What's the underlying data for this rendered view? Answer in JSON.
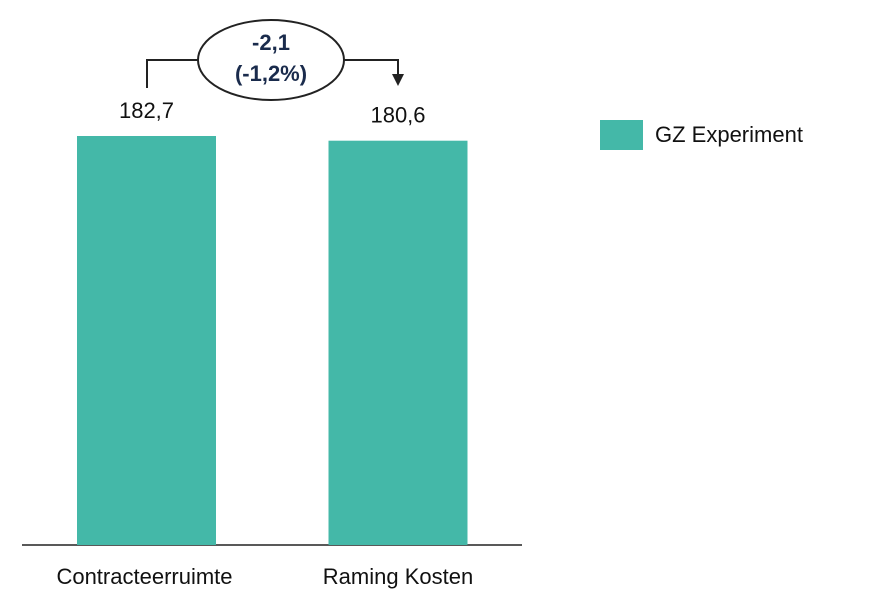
{
  "chart_data": {
    "type": "bar",
    "categories": [
      "Contracteerruimte",
      "Raming Kosten"
    ],
    "series": [
      {
        "name": "GZ Experiment",
        "color": "#44b8a8",
        "values": [
          182.7,
          180.6
        ],
        "value_labels": [
          "182,7",
          "180,6"
        ]
      }
    ],
    "annotation": [
      "-2,1",
      "(-1,2%)"
    ]
  }
}
